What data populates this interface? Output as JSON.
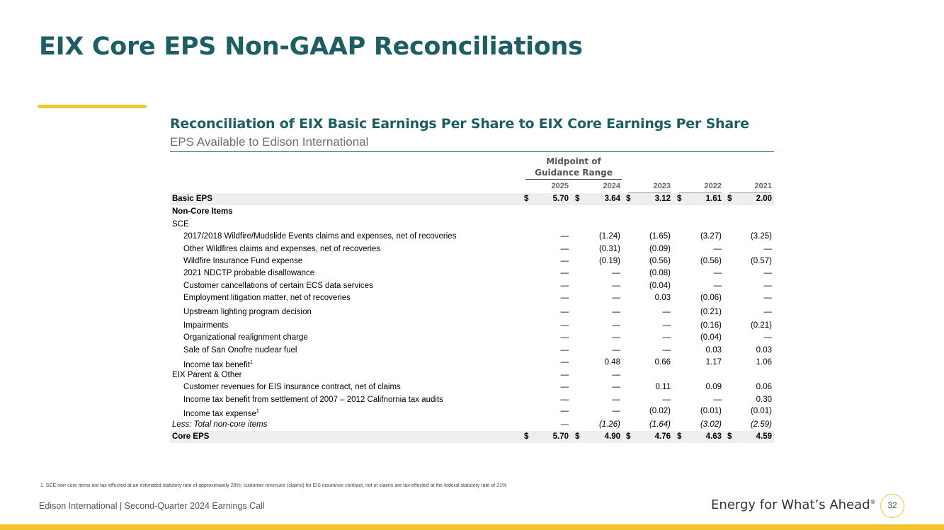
{
  "title": "EIX Core EPS Non-GAAP Reconciliations",
  "table_title": "Reconciliation of EIX Basic Earnings Per Share to EIX Core Earnings Per Share",
  "table_subtitle": "EPS Available to Edison International",
  "midpoint_header_line1": "Midpoint of",
  "midpoint_header_line2": "Guidance Range",
  "years": [
    "2025",
    "2024",
    "2023",
    "2022",
    "2021"
  ],
  "rows": [
    {
      "label": "Basic EPS",
      "style": "bold",
      "indent": false,
      "shade": true,
      "dollar": true,
      "values": [
        "5.70",
        "3.64",
        "3.12",
        "1.61",
        "2.00"
      ]
    },
    {
      "label": "Non-Core Items",
      "style": "bold",
      "indent": false,
      "shade": false,
      "dollar": false,
      "values": [
        "",
        "",
        "",
        "",
        ""
      ]
    },
    {
      "label": "SCE",
      "style": "normal",
      "indent": false,
      "shade": false,
      "dollar": false,
      "values": [
        "",
        "",
        "",
        "",
        ""
      ]
    },
    {
      "label": "2017/2018 Wildfire/Mudslide Events claims and expenses, net of recoveries",
      "style": "normal",
      "indent": true,
      "shade": false,
      "dollar": false,
      "values": [
        "—",
        "(1.24)",
        "(1.65)",
        "(3.27)",
        "(3.25)"
      ]
    },
    {
      "label": "Other Wildfires claims and expenses, net of recoveries",
      "style": "normal",
      "indent": true,
      "shade": false,
      "dollar": false,
      "values": [
        "—",
        "(0.31)",
        "(0.09)",
        "—",
        "—"
      ]
    },
    {
      "label": "Wildfire Insurance Fund expense",
      "style": "normal",
      "indent": true,
      "shade": false,
      "dollar": false,
      "values": [
        "—",
        "(0.19)",
        "(0.56)",
        "(0.56)",
        "(0.57)"
      ]
    },
    {
      "label": "2021 NDCTP probable disallowance",
      "style": "normal",
      "indent": true,
      "shade": false,
      "dollar": false,
      "values": [
        "—",
        "—",
        "(0.08)",
        "—",
        "—"
      ]
    },
    {
      "label": "Customer cancellations of certain ECS data services",
      "style": "normal",
      "indent": true,
      "shade": false,
      "dollar": false,
      "values": [
        "—",
        "—",
        "(0.04)",
        "—",
        "—"
      ]
    },
    {
      "label": "Employment litigation matter, net of recoveries",
      "style": "normal",
      "indent": true,
      "shade": false,
      "dollar": false,
      "values": [
        "—",
        "—",
        "0.03",
        "(0.06)",
        "—"
      ]
    },
    {
      "label": "Upstream lighting program decision",
      "style": "normal",
      "indent": true,
      "shade": false,
      "dollar": false,
      "values": [
        "—",
        "—",
        "—",
        "(0.21)",
        "—"
      ]
    },
    {
      "label": "Impairments",
      "style": "normal",
      "indent": true,
      "shade": false,
      "dollar": false,
      "values": [
        "—",
        "—",
        "—",
        "(0.16)",
        "(0.21)"
      ]
    },
    {
      "label": "Organizational realignment charge",
      "style": "normal",
      "indent": true,
      "shade": false,
      "dollar": false,
      "values": [
        "—",
        "—",
        "—",
        "(0.04)",
        "—"
      ]
    },
    {
      "label": "Sale of San Onofre nuclear fuel",
      "style": "normal",
      "indent": true,
      "shade": false,
      "dollar": false,
      "values": [
        "—",
        "—",
        "—",
        "0.03",
        "0.03"
      ]
    },
    {
      "label": "Income tax benefit",
      "footnote": "1",
      "style": "normal",
      "indent": true,
      "shade": false,
      "dollar": false,
      "values": [
        "—",
        "0.48",
        "0.66",
        "1.17",
        "1.06"
      ]
    },
    {
      "label": "EIX Parent & Other",
      "style": "normal",
      "indent": false,
      "shade": false,
      "dollar": false,
      "values": [
        "—",
        "—",
        "",
        "",
        ""
      ]
    },
    {
      "label": "Customer revenues for EIS insurance contract, net of claims",
      "style": "normal",
      "indent": true,
      "shade": false,
      "dollar": false,
      "values": [
        "—",
        "—",
        "0.11",
        "0.09",
        "0.06"
      ]
    },
    {
      "label": "Income tax benefit from settlement of 2007 – 2012 Califnornia tax audits",
      "style": "normal",
      "indent": true,
      "shade": false,
      "dollar": false,
      "values": [
        "—",
        "—",
        "—",
        "—",
        "0.30"
      ]
    },
    {
      "label": "Income tax expense",
      "footnote": "1",
      "style": "normal",
      "indent": true,
      "shade": false,
      "dollar": false,
      "values": [
        "—",
        "—",
        "(0.02)",
        "(0.01)",
        "(0.01)"
      ]
    },
    {
      "label": "Less: Total non-core items",
      "style": "italic",
      "indent": false,
      "shade": false,
      "dollar": false,
      "values": [
        "—",
        "(1.26)",
        "(1.64)",
        "(3.02)",
        "(2.59)"
      ]
    },
    {
      "label": "Core EPS",
      "style": "bold",
      "indent": false,
      "shade": true,
      "dollar": true,
      "values": [
        "5.70",
        "4.90",
        "4.76",
        "4.63",
        "4.59"
      ]
    }
  ],
  "dollar_sign": "$",
  "footnote": "1.   SCE non-core items are tax-effected at an estimated statutory rate of approximately 28%; customer revenues (claims) for EIS insurance contract, net of claims are tax-effected at the federal statutory rate of 21%",
  "footer_left": "Edison International |  Second-Quarter 2024 Earnings Call",
  "footer_right": "Energy for What’s Ahead",
  "footer_right_mark": "®",
  "page_number": "32",
  "colors": {
    "brand_teal": "#1b5e63",
    "accent_yellow": "#f2c832"
  }
}
